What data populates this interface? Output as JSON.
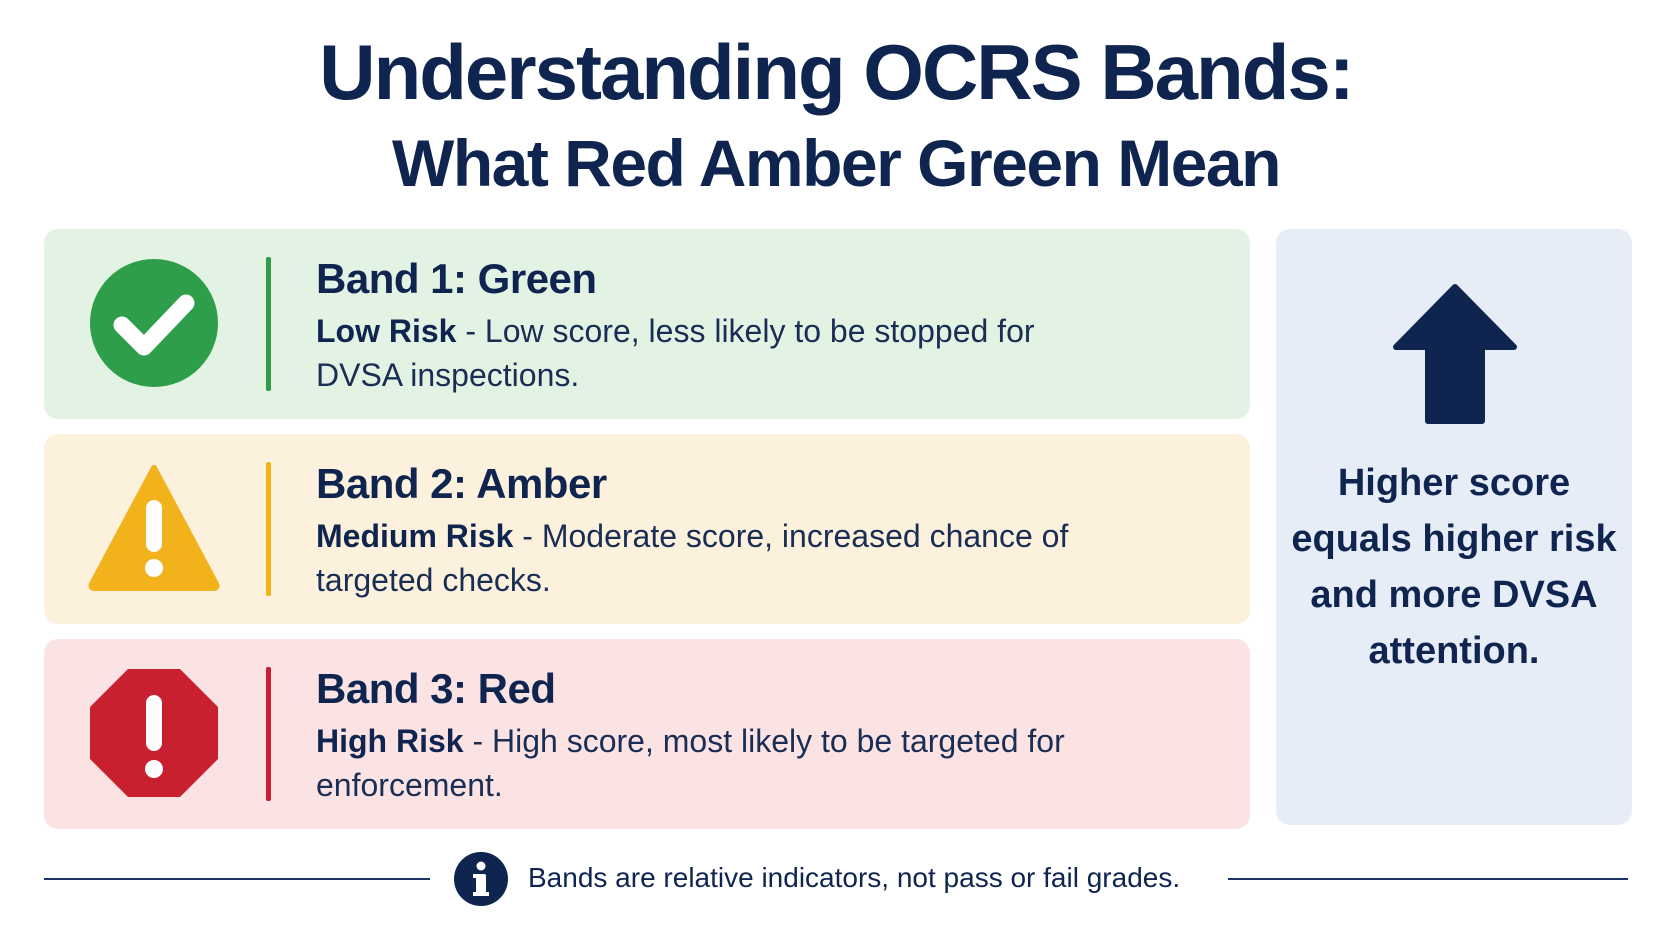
{
  "title": {
    "main": "Understanding OCRS Bands:",
    "sub": "What Red Amber Green Mean"
  },
  "bands": [
    {
      "icon": "check-circle-icon",
      "color": "#2e9e4a",
      "title": "Band 1: Green",
      "risk": "Low Risk",
      "separator": " - ",
      "description": "Low score, less likely to be stopped for DVSA inspections."
    },
    {
      "icon": "warning-triangle-icon",
      "color": "#f2b21b",
      "title": "Band 2: Amber",
      "risk": "Medium Risk",
      "separator": " - ",
      "description": "Moderate score, increased chance of targeted checks."
    },
    {
      "icon": "stop-octagon-icon",
      "color": "#c8202e",
      "title": "Band 3: Red",
      "risk": "High Risk",
      "separator": " - ",
      "description": "High score, most likely to be targeted for enforcement."
    }
  ],
  "side_panel": {
    "icon": "arrow-up-icon",
    "text": "Higher score equals higher risk and more DVSA attention."
  },
  "footer": {
    "icon": "info-icon",
    "text": "Bands are relative indicators, not pass or fail grades."
  }
}
